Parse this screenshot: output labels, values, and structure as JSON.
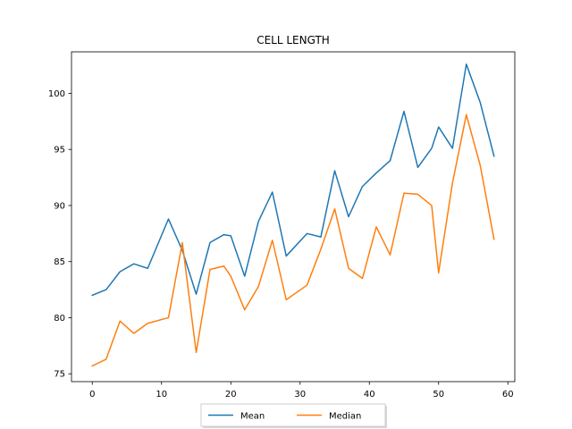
{
  "chart_data": {
    "type": "line",
    "title": "CELL LENGTH",
    "xlabel": "",
    "ylabel": "",
    "xlim": [
      -3,
      61
    ],
    "ylim": [
      74.3,
      103.7
    ],
    "xticks": [
      0,
      10,
      20,
      30,
      40,
      50,
      60
    ],
    "yticks": [
      75,
      80,
      85,
      90,
      95,
      100
    ],
    "grid": false,
    "legend_position": "bottom-center",
    "x": [
      0,
      2,
      4,
      6,
      8,
      11,
      13,
      15,
      17,
      19,
      20,
      22,
      24,
      26,
      28,
      31,
      33,
      35,
      37,
      39,
      41,
      43,
      45,
      47,
      49,
      50,
      52,
      54,
      56,
      58
    ],
    "series": [
      {
        "name": "Mean",
        "color": "#1f77b4",
        "values": [
          82.0,
          82.5,
          84.1,
          84.8,
          84.4,
          88.8,
          86.0,
          82.1,
          86.7,
          87.4,
          87.3,
          83.7,
          88.6,
          91.2,
          85.5,
          87.5,
          87.2,
          93.1,
          89.0,
          91.7,
          92.9,
          94.0,
          98.4,
          93.4,
          95.1,
          97.0,
          95.1,
          102.6,
          99.2,
          94.4
        ]
      },
      {
        "name": "Median",
        "color": "#ff7f0e",
        "values": [
          75.7,
          76.3,
          79.7,
          78.6,
          79.5,
          80.0,
          86.7,
          76.9,
          84.3,
          84.6,
          83.7,
          80.7,
          82.8,
          86.9,
          81.6,
          82.9,
          86.1,
          89.7,
          84.4,
          83.5,
          88.1,
          85.6,
          91.1,
          91.0,
          90.0,
          84.0,
          92.0,
          98.1,
          93.6,
          87.0
        ]
      }
    ]
  }
}
